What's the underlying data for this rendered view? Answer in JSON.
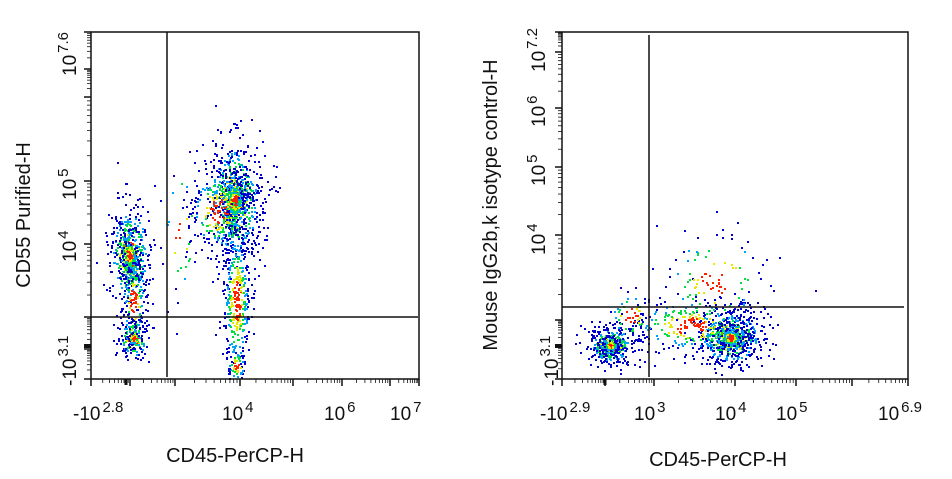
{
  "chart_data": [
    {
      "type": "scatter",
      "subtype": "flow-cytometry-density-dot-plot",
      "xlabel": "CD45-PerCP-H",
      "ylabel": "CD55 Purified-H",
      "x_ticks": [
        {
          "base": "-10",
          "exp": "2.8"
        },
        {
          "base": "10",
          "exp": "4"
        },
        {
          "base": "10",
          "exp": "6"
        },
        {
          "base": "10",
          "exp": "7"
        }
      ],
      "y_ticks": [
        {
          "base": "-10",
          "exp": "3.1"
        },
        {
          "base": "10",
          "exp": "4"
        },
        {
          "base": "10",
          "exp": "5"
        },
        {
          "base": "10",
          "exp": "7.6"
        }
      ],
      "xlim": [
        "-10^2.8",
        "10^7"
      ],
      "ylim": [
        "-10^3.1",
        "10^7.6"
      ],
      "gate": {
        "x": "~10^3",
        "y": "~10^3.5"
      },
      "populations": [
        {
          "name": "CD45-low CD55+",
          "x_center": "-10^2.5",
          "y_center": "10^3.9",
          "density": "high"
        },
        {
          "name": "CD45-low CD55-",
          "x_center": "-10^2.5",
          "y_center": "~0",
          "density": "medium"
        },
        {
          "name": "CD45+ CD55+",
          "x_center": "10^4",
          "y_center": "10^4.7",
          "density": "high"
        },
        {
          "name": "CD45+ tail",
          "x_center": "10^4",
          "y_center": "10^3",
          "density": "low"
        }
      ]
    },
    {
      "type": "scatter",
      "subtype": "flow-cytometry-density-dot-plot",
      "xlabel": "CD45-PerCP-H",
      "ylabel": "Mouse IgG2b,k isotype control-H",
      "x_ticks": [
        {
          "base": "-10",
          "exp": "2.9"
        },
        {
          "base": "10",
          "exp": "3"
        },
        {
          "base": "10",
          "exp": "4"
        },
        {
          "base": "10",
          "exp": "5"
        },
        {
          "base": "10",
          "exp": "6.9"
        }
      ],
      "y_ticks": [
        {
          "base": "-10",
          "exp": "3.1"
        },
        {
          "base": "10",
          "exp": "4"
        },
        {
          "base": "10",
          "exp": "5"
        },
        {
          "base": "10",
          "exp": "6"
        },
        {
          "base": "10",
          "exp": "7.2"
        }
      ],
      "xlim": [
        "-10^2.9",
        "10^6.9"
      ],
      "ylim": [
        "-10^3.1",
        "10^7.2"
      ],
      "gate": {
        "x": "~10^3",
        "y": "~10^3.6"
      },
      "populations": [
        {
          "name": "CD45-low isotype-",
          "x_center": "-10^2.5",
          "y_center": "~0",
          "density": "high"
        },
        {
          "name": "CD45+ isotype-",
          "x_center": "10^4",
          "y_center": "~10^2.5",
          "density": "high"
        },
        {
          "name": "scatter above gate",
          "x_center": "10^3.8",
          "y_center": "10^3.8",
          "density": "low"
        }
      ]
    }
  ],
  "colors": {
    "axis": "#111111",
    "low": "#0000cc",
    "mid1": "#00a0ff",
    "mid2": "#00e040",
    "mid3": "#e8e800",
    "high": "#ff2000"
  }
}
